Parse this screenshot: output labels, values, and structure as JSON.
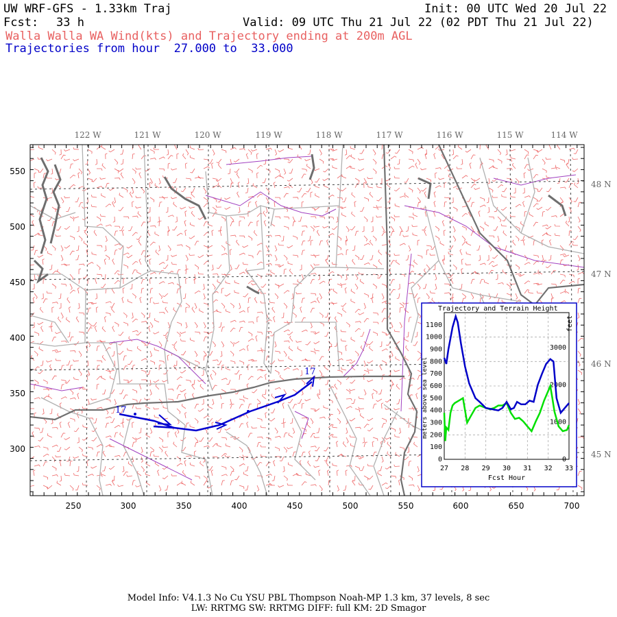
{
  "header": {
    "title": "UW WRF-GFS - 1.33km Traj",
    "init": "Init: 00 UTC Wed 20 Jul 22",
    "fcst_label": "Fcst:",
    "fcst_value": "33 h",
    "valid": "Valid: 09 UTC Thu 21 Jul 22 (02 PDT Thu 21 Jul 22)",
    "subtitle": "Walla Walla WA Wind(kts) and Trajectory ending at 200m AGL",
    "traj_range": "Trajectories from hour  27.000 to  33.000"
  },
  "colors": {
    "text": "#000000",
    "subtitle": "#e86060",
    "trajectory": "#0000c8",
    "terrain": "#00e000",
    "state_border": "#707070",
    "county_border": "#b0b0b0",
    "wind_barb": "#ee6666",
    "water": "#a040c0",
    "grid": "#333333"
  },
  "map": {
    "lon_labels": [
      "122 W",
      "121 W",
      "120 W",
      "119 W",
      "118 W",
      "117 W",
      "116 W",
      "115 W",
      "114 W"
    ],
    "lat_labels": [
      "48 N",
      "47 N",
      "46 N",
      "45 N"
    ],
    "x_ticks": [
      "250",
      "300",
      "350",
      "400",
      "450",
      "500",
      "550",
      "600",
      "650",
      "700"
    ],
    "y_ticks": [
      "550",
      "500",
      "450",
      "400",
      "350",
      "300"
    ],
    "traj_start_label": "17",
    "traj_end_label": "17"
  },
  "inset": {
    "title": "Trajectory and Terrain Height",
    "ylabel_left": "meters above sea level",
    "ylabel_right": "feet",
    "xlabel": "Fcst Hour",
    "x_ticks": [
      "27",
      "28",
      "29",
      "30",
      "31",
      "32",
      "33"
    ],
    "y_ticks": [
      "0",
      "100",
      "200",
      "300",
      "400",
      "500",
      "600",
      "700",
      "800",
      "900",
      "1000",
      "1100"
    ],
    "y2_ticks": [
      "0",
      "1000",
      "2000",
      "3000"
    ]
  },
  "chart_data": {
    "type": "line",
    "title": "Trajectory and Terrain Height",
    "xlabel": "Fcst Hour",
    "ylabel": "meters above sea level",
    "xlim": [
      27,
      33
    ],
    "ylim": [
      0,
      1200
    ],
    "grid": true,
    "series": [
      {
        "name": "trajectory",
        "x": [
          27.0,
          27.1,
          27.2,
          27.4,
          27.55,
          27.65,
          27.8,
          28.0,
          28.2,
          28.5,
          28.7,
          29.0,
          29.3,
          29.6,
          29.8,
          30.0,
          30.2,
          30.35,
          30.5,
          30.7,
          30.9,
          31.1,
          31.3,
          31.5,
          31.7,
          31.9,
          32.1,
          32.25,
          32.4,
          32.6,
          32.8,
          33.0
        ],
        "y": [
          830,
          780,
          900,
          1080,
          1170,
          1120,
          950,
          760,
          620,
          500,
          470,
          420,
          410,
          400,
          420,
          470,
          410,
          420,
          470,
          450,
          450,
          480,
          470,
          610,
          700,
          780,
          820,
          800,
          500,
          380,
          420,
          460
        ]
      },
      {
        "name": "terrain",
        "x": [
          27.0,
          27.05,
          27.1,
          27.2,
          27.3,
          27.4,
          27.5,
          27.7,
          27.9,
          28.1,
          28.3,
          28.5,
          28.7,
          29.0,
          29.2,
          29.4,
          29.6,
          29.8,
          30.0,
          30.2,
          30.4,
          30.6,
          30.8,
          31.0,
          31.2,
          31.4,
          31.6,
          31.8,
          32.0,
          32.1,
          32.2,
          32.3,
          32.5,
          32.7,
          32.9,
          33.0
        ],
        "y": [
          380,
          150,
          260,
          240,
          380,
          440,
          460,
          480,
          500,
          300,
          360,
          420,
          440,
          420,
          410,
          420,
          440,
          440,
          460,
          380,
          330,
          340,
          310,
          270,
          230,
          310,
          380,
          480,
          560,
          600,
          500,
          390,
          270,
          230,
          240,
          280
        ]
      }
    ]
  },
  "footer": {
    "line1": "Model Info: V4.1.3   No Cu   YSU PBL  Thompson    Noah-MP   1.3 km,  37 levels,    8 sec",
    "line2": "LW: RRTMG SW: RRTMG   DIFF: full   KM: 2D Smagor"
  }
}
